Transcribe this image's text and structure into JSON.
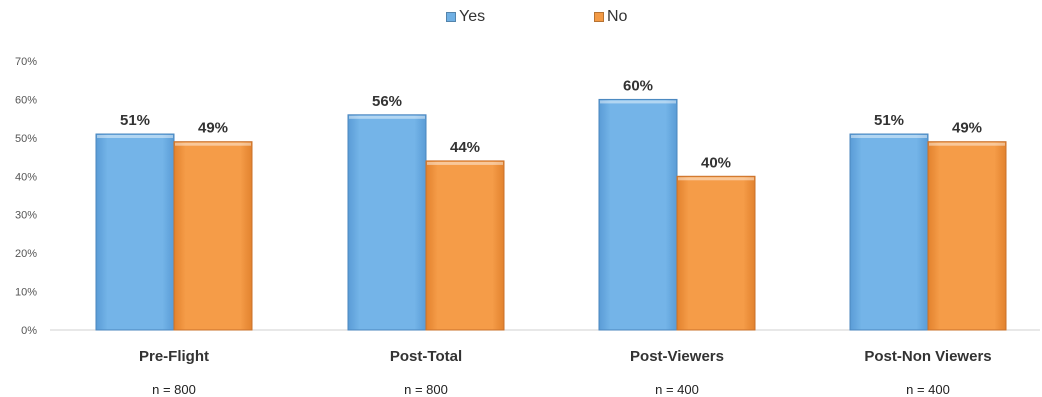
{
  "chart_data": {
    "type": "bar",
    "categories": [
      "Pre-Flight",
      "Post-Total",
      "Post-Viewers",
      "Post-Non Viewers"
    ],
    "sample_sizes": [
      "n = 800",
      "n = 800",
      "n = 400",
      "n = 400"
    ],
    "series": [
      {
        "name": "Yes",
        "values": [
          51,
          56,
          60,
          51
        ],
        "labels": [
          "51%",
          "56%",
          "60%",
          "51%"
        ],
        "color": "#70B0E4"
      },
      {
        "name": "No",
        "values": [
          49,
          44,
          40,
          49
        ],
        "labels": [
          "49%",
          "44%",
          "40%",
          "49%"
        ],
        "color": "#F39A45"
      }
    ],
    "y_ticks": [
      "0%",
      "10%",
      "20%",
      "30%",
      "40%",
      "50%",
      "60%",
      "70%"
    ],
    "ylim": [
      0,
      70
    ],
    "legend_position": "top-center",
    "grid": false
  }
}
